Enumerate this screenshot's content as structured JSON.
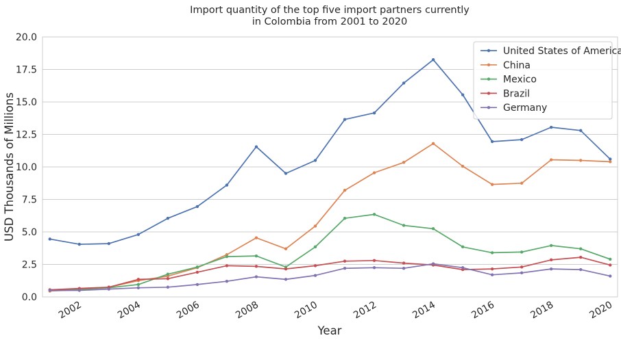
{
  "chart_data": {
    "type": "line",
    "title_line1": "Import quantity of the top five import partners currently",
    "title_line2": "in Colombia from 2001 to 2020",
    "xlabel": "Year",
    "ylabel": "USD Thousands of Millions",
    "x": [
      2001,
      2002,
      2003,
      2004,
      2005,
      2006,
      2007,
      2008,
      2009,
      2010,
      2011,
      2012,
      2013,
      2014,
      2015,
      2016,
      2017,
      2018,
      2019,
      2020
    ],
    "xlim": [
      2000.75,
      2020.25
    ],
    "ylim": [
      0,
      20
    ],
    "x_ticks": [
      "2002",
      "2004",
      "2006",
      "2008",
      "2010",
      "2012",
      "2014",
      "2016",
      "2018",
      "2020"
    ],
    "y_ticks": [
      "0.0",
      "2.5",
      "5.0",
      "7.5",
      "10.0",
      "12.5",
      "15.0",
      "17.5",
      "20.0"
    ],
    "grid": "horizontal",
    "legend_position": "top-right",
    "series": [
      {
        "name": "United States of America",
        "color": "#4c72b0",
        "values": [
          4.45,
          4.05,
          4.1,
          4.8,
          6.05,
          6.95,
          8.6,
          11.55,
          9.5,
          10.5,
          13.65,
          14.15,
          16.45,
          18.25,
          15.55,
          11.95,
          12.1,
          13.05,
          12.8,
          10.6
        ]
      },
      {
        "name": "China",
        "color": "#dd8452",
        "values": [
          0.45,
          0.55,
          0.75,
          1.25,
          1.6,
          2.25,
          3.25,
          4.55,
          3.7,
          5.45,
          8.2,
          9.55,
          10.35,
          11.8,
          10.05,
          8.65,
          8.75,
          10.55,
          10.5,
          10.4
        ]
      },
      {
        "name": "Mexico",
        "color": "#55a868",
        "values": [
          0.55,
          0.6,
          0.7,
          0.95,
          1.75,
          2.3,
          3.1,
          3.15,
          2.3,
          3.85,
          6.05,
          6.35,
          5.5,
          5.25,
          3.85,
          3.4,
          3.45,
          3.95,
          3.7,
          2.9
        ]
      },
      {
        "name": "Brazil",
        "color": "#c44e52",
        "values": [
          0.55,
          0.65,
          0.75,
          1.35,
          1.4,
          1.9,
          2.4,
          2.35,
          2.15,
          2.4,
          2.75,
          2.8,
          2.6,
          2.45,
          2.1,
          2.15,
          2.3,
          2.85,
          3.05,
          2.45
        ]
      },
      {
        "name": "Germany",
        "color": "#8172b2",
        "values": [
          0.5,
          0.5,
          0.6,
          0.7,
          0.75,
          0.95,
          1.2,
          1.55,
          1.35,
          1.65,
          2.2,
          2.25,
          2.2,
          2.55,
          2.25,
          1.7,
          1.85,
          2.15,
          2.1,
          1.6
        ]
      }
    ]
  }
}
